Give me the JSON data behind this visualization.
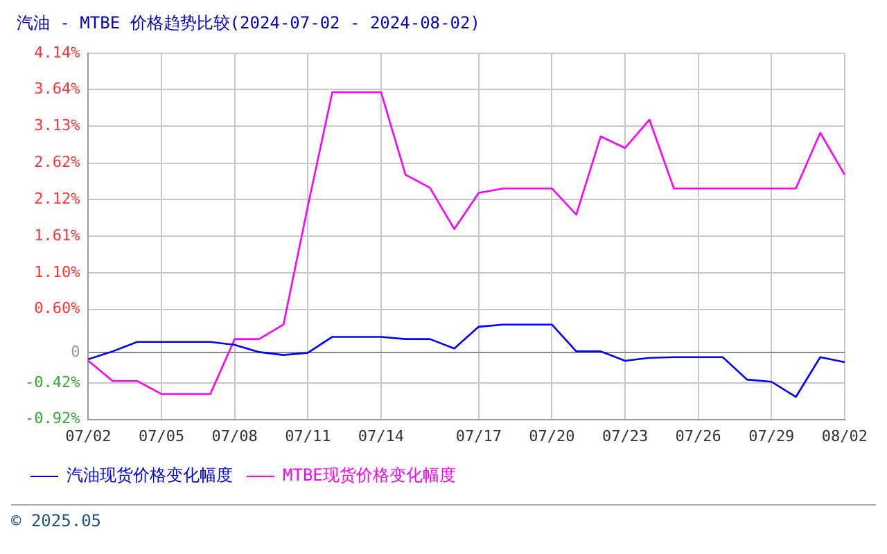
{
  "chart_data": {
    "type": "line",
    "title": "汽油 - MTBE 价格趋势比较(2024-07-02 - 2024-08-02)",
    "categories": [
      "07/02",
      null,
      null,
      "07/05",
      null,
      null,
      "07/08",
      null,
      null,
      "07/11",
      null,
      null,
      "07/14",
      null,
      null,
      null,
      "07/17",
      null,
      null,
      "07/20",
      null,
      null,
      "07/23",
      null,
      null,
      "07/26",
      null,
      null,
      "07/29",
      null,
      null,
      "08/02"
    ],
    "series": [
      {
        "name": "汽油现货价格变化幅度",
        "color": "#0000ff",
        "values": [
          -0.09,
          0.02,
          0.15,
          0.15,
          0.15,
          0.15,
          0.11,
          0.01,
          -0.03,
          0,
          0.22,
          0.22,
          0.22,
          0.19,
          0.19,
          0.06,
          0.36,
          0.39,
          0.39,
          0.39,
          0.02,
          0.02,
          -0.11,
          -0.07,
          -0.06,
          -0.06,
          -0.06,
          -0.37,
          -0.4,
          -0.61,
          -0.06,
          -0.13
        ]
      },
      {
        "name": "MTBE现货价格变化幅度",
        "color": "#ff00ff",
        "values": [
          -0.11,
          -0.39,
          -0.39,
          -0.57,
          -0.57,
          -0.57,
          0.19,
          0.19,
          0.39,
          2.03,
          3.6,
          3.6,
          3.6,
          2.46,
          2.28,
          1.71,
          2.21,
          2.27,
          2.27,
          2.27,
          1.91,
          2.99,
          2.83,
          3.22,
          2.27,
          2.27,
          2.27,
          2.27,
          2.27,
          2.27,
          3.04,
          2.46
        ]
      }
    ],
    "ylim": [
      -0.92,
      4.14
    ],
    "yticks": [
      {
        "value": -0.92,
        "label": "-0.92%"
      },
      {
        "value": -0.42,
        "label": "-0.42%"
      },
      0,
      {
        "value": 0.6,
        "label": "0.60%"
      },
      {
        "value": 1.1,
        "label": "1.10%"
      },
      {
        "value": 1.61,
        "label": "1.61%"
      },
      {
        "value": 2.12,
        "label": "2.12%"
      },
      {
        "value": 2.62,
        "label": "2.62%"
      },
      {
        "value": 3.13,
        "label": "3.13%"
      },
      {
        "value": 3.64,
        "label": "3.64%"
      },
      {
        "value": 4.14,
        "label": "4.14%"
      }
    ],
    "grid": true,
    "legend": "bottom left",
    "marker": "none",
    "line_style": "solid",
    "annotations": [
      "© 2025.05"
    ]
  }
}
